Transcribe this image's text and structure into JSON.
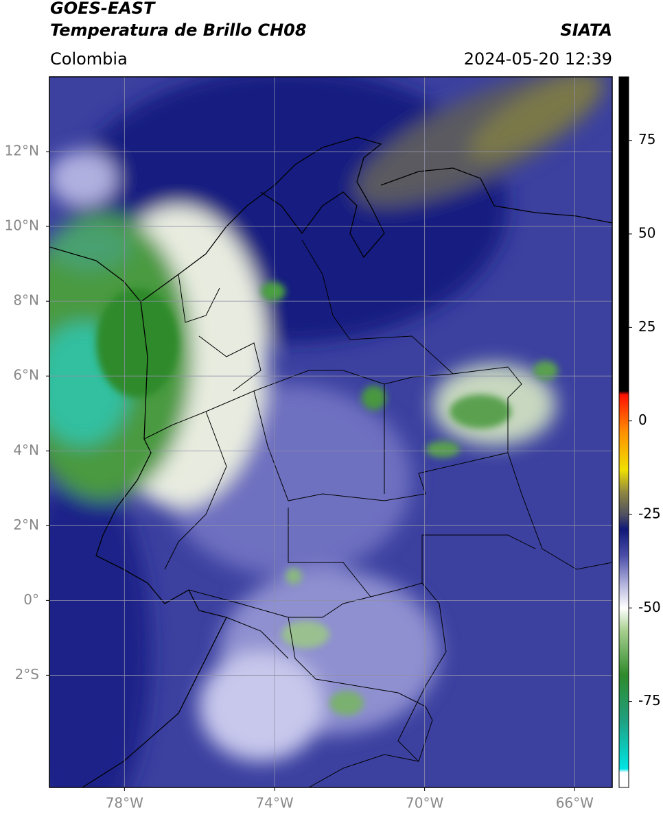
{
  "header": {
    "satellite": "GOES-EAST",
    "product": "Temperatura de Brillo CH08",
    "source": "SIATA",
    "region": "Colombia",
    "datetime": "2024-05-20 12:39"
  },
  "map": {
    "lonlim": [
      -80,
      -65
    ],
    "latlim": [
      -5,
      14
    ],
    "grid": true,
    "lonticks": [
      {
        "value": -78,
        "label": "78°W"
      },
      {
        "value": -74,
        "label": "74°W"
      },
      {
        "value": -70,
        "label": "70°W"
      },
      {
        "value": -66,
        "label": "66°W"
      }
    ],
    "latticks": [
      {
        "value": 12,
        "label": "12°N"
      },
      {
        "value": 10,
        "label": "10°N"
      },
      {
        "value": 8,
        "label": "8°N"
      },
      {
        "value": 6,
        "label": "6°N"
      },
      {
        "value": 4,
        "label": "4°N"
      },
      {
        "value": 2,
        "label": "2°N"
      },
      {
        "value": 0,
        "label": "0°"
      },
      {
        "value": -2,
        "label": "2°S"
      }
    ]
  },
  "colorbar": {
    "lim": [
      -98,
      92
    ],
    "ticks": [
      75,
      50,
      25,
      0,
      -25,
      -50,
      -75
    ],
    "stops": [
      {
        "value": -98,
        "color": "#ffffff"
      },
      {
        "value": -94,
        "color": "#ffffff"
      },
      {
        "value": -93,
        "color": "#00e5e5"
      },
      {
        "value": -80,
        "color": "#20a080"
      },
      {
        "value": -68,
        "color": "#2e8a2a"
      },
      {
        "value": -56,
        "color": "#a8d090"
      },
      {
        "value": -50,
        "color": "#ffffff"
      },
      {
        "value": -44,
        "color": "#b8b8e0"
      },
      {
        "value": -36,
        "color": "#4a4ea8"
      },
      {
        "value": -29,
        "color": "#101878"
      },
      {
        "value": -25,
        "color": "#505060"
      },
      {
        "value": -19,
        "color": "#908840"
      },
      {
        "value": -13,
        "color": "#f0e000"
      },
      {
        "value": -3,
        "color": "#ff9000"
      },
      {
        "value": 7,
        "color": "#ff1000"
      },
      {
        "value": 8,
        "color": "#000000"
      },
      {
        "value": 92,
        "color": "#000000"
      }
    ]
  }
}
